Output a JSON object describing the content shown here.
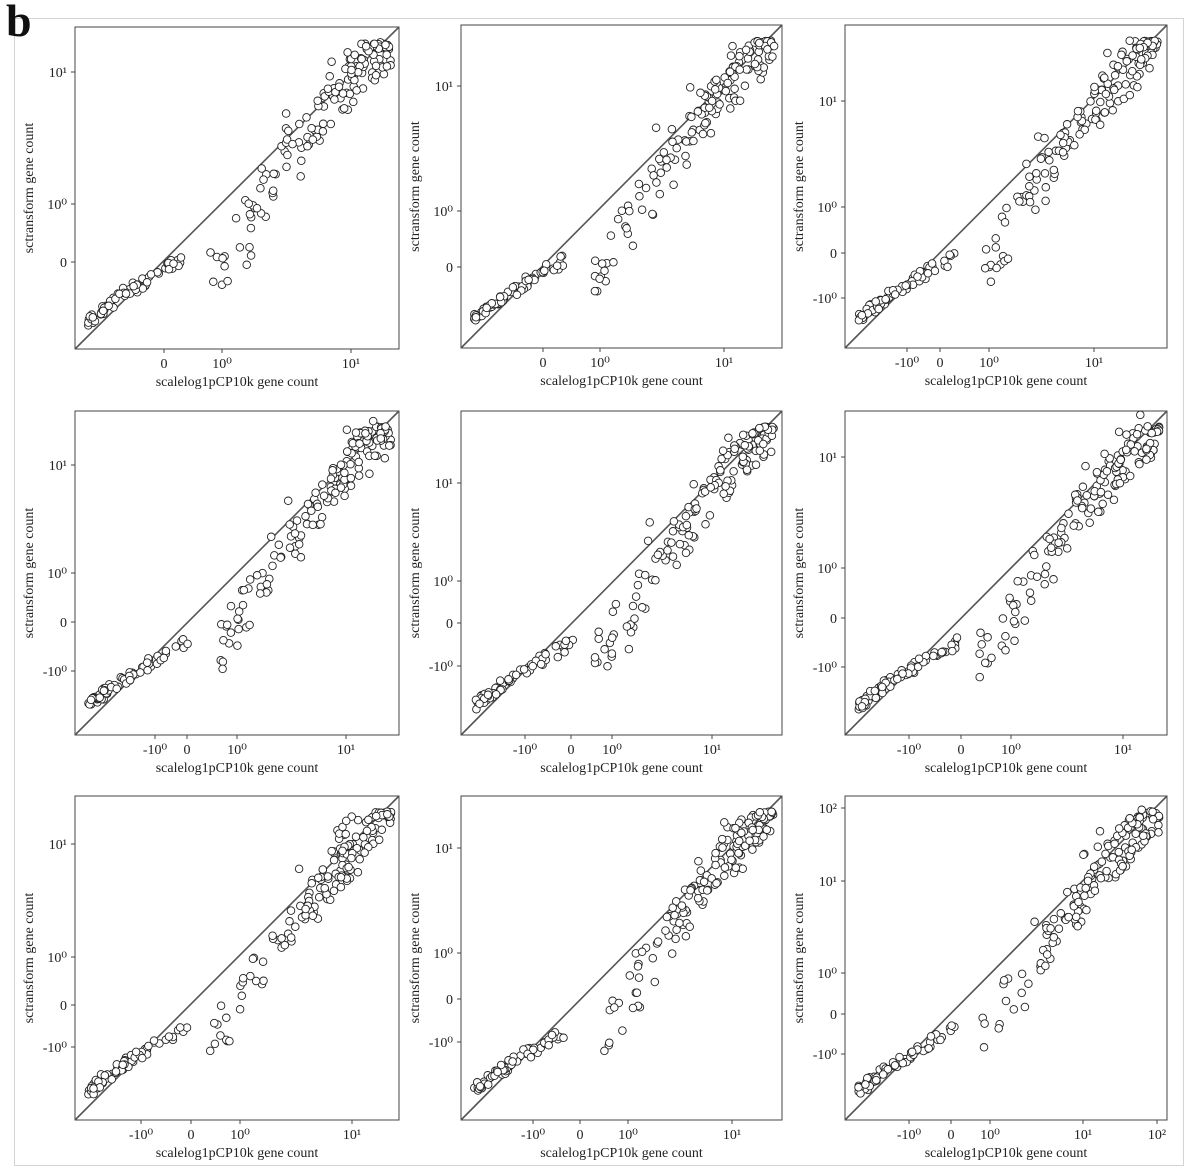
{
  "figure": {
    "panel_letter": "b"
  },
  "chart_data": [
    {
      "type": "scatter",
      "xlabel": "scalelog1pCP10k gene count",
      "ylabel": "sctransform gene count",
      "x_ticks": [
        "0",
        "10⁰",
        "10¹"
      ],
      "y_ticks": [
        "0",
        "10⁰",
        "10¹"
      ],
      "xlim": [
        -3.0,
        12.0
      ],
      "ylim": [
        -3.0,
        12.0
      ],
      "scale": "symlog",
      "diagonal": true
    },
    {
      "type": "scatter",
      "xlabel": "scalelog1pCP10k gene count",
      "ylabel": "sctransform gene count",
      "x_ticks": [
        "0",
        "10⁰",
        "10¹"
      ],
      "y_ticks": [
        "0",
        "10⁰",
        "10¹"
      ],
      "xlim": [
        -3.0,
        12.0
      ],
      "ylim": [
        -3.0,
        12.0
      ],
      "scale": "symlog",
      "diagonal": true
    },
    {
      "type": "scatter",
      "xlabel": "scalelog1pCP10k gene count",
      "ylabel": "sctransform gene count",
      "x_ticks": [
        "-10⁰",
        "0",
        "10⁰",
        "10¹"
      ],
      "y_ticks": [
        "-10⁰",
        "0",
        "10⁰",
        "10¹"
      ],
      "xlim": [
        -3.0,
        12.0
      ],
      "ylim": [
        -3.0,
        12.0
      ],
      "scale": "symlog",
      "diagonal": true
    },
    {
      "type": "scatter",
      "xlabel": "scalelog1pCP10k gene count",
      "ylabel": "sctransform gene count",
      "x_ticks": [
        "-10⁰",
        "0",
        "10⁰",
        "10¹"
      ],
      "y_ticks": [
        "-10⁰",
        "0",
        "10⁰",
        "10¹"
      ],
      "xlim": [
        -3.0,
        12.0
      ],
      "ylim": [
        -3.0,
        12.0
      ],
      "scale": "symlog",
      "diagonal": true
    },
    {
      "type": "scatter",
      "xlabel": "scalelog1pCP10k gene count",
      "ylabel": "sctransform gene count",
      "x_ticks": [
        "-10⁰",
        "0",
        "10⁰",
        "10¹"
      ],
      "y_ticks": [
        "-10⁰",
        "0",
        "10⁰",
        "10¹"
      ],
      "xlim": [
        -3.0,
        12.0
      ],
      "ylim": [
        -3.0,
        12.0
      ],
      "scale": "symlog",
      "diagonal": true
    },
    {
      "type": "scatter",
      "xlabel": "scalelog1pCP10k gene count",
      "ylabel": "sctransform gene count",
      "x_ticks": [
        "-10⁰",
        "0",
        "10⁰",
        "10¹"
      ],
      "y_ticks": [
        "-10⁰",
        "0",
        "10⁰",
        "10¹"
      ],
      "xlim": [
        -3.0,
        12.0
      ],
      "ylim": [
        -3.0,
        12.0
      ],
      "scale": "symlog",
      "diagonal": true
    },
    {
      "type": "scatter",
      "xlabel": "scalelog1pCP10k gene count",
      "ylabel": "sctransform gene count",
      "x_ticks": [
        "-10⁰",
        "0",
        "10⁰",
        "10¹"
      ],
      "y_ticks": [
        "-10⁰",
        "0",
        "10⁰",
        "10¹"
      ],
      "xlim": [
        -3.0,
        12.0
      ],
      "ylim": [
        -3.0,
        12.0
      ],
      "scale": "symlog",
      "diagonal": true
    },
    {
      "type": "scatter",
      "xlabel": "scalelog1pCP10k gene count",
      "ylabel": "sctransform gene count",
      "x_ticks": [
        "-10⁰",
        "0",
        "10⁰",
        "10¹"
      ],
      "y_ticks": [
        "-10⁰",
        "0",
        "10⁰",
        "10¹"
      ],
      "xlim": [
        -3.0,
        12.0
      ],
      "ylim": [
        -3.0,
        12.0
      ],
      "scale": "symlog",
      "diagonal": true
    },
    {
      "type": "scatter",
      "xlabel": "scalelog1pCP10k gene count",
      "ylabel": "sctransform gene count",
      "x_ticks": [
        "-10⁰",
        "0",
        "10⁰",
        "10¹",
        "10²"
      ],
      "y_ticks": [
        "-10⁰",
        "0",
        "10⁰",
        "10¹",
        "10²"
      ],
      "xlim": [
        -3.0,
        12.0
      ],
      "ylim": [
        -3.0,
        12.0
      ],
      "scale": "symlog",
      "diagonal": true
    }
  ]
}
